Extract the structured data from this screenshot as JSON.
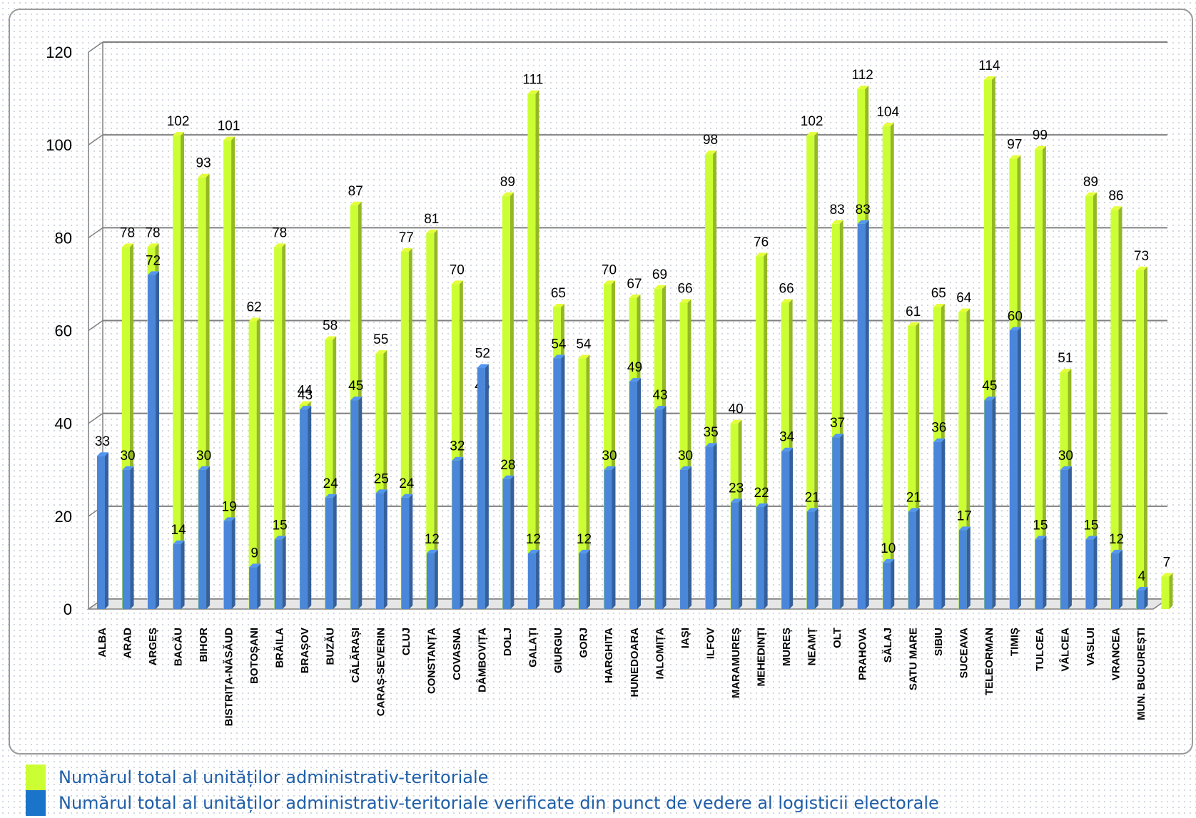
{
  "colors": {
    "series_total": "#ccff33",
    "series_verified": "#4a86d9",
    "grid": "#808080",
    "text": "#000000",
    "legend_text": "#1f5fa8"
  },
  "chart_data": {
    "type": "bar",
    "style": "3d-clustered-column",
    "title": "",
    "xlabel": "",
    "ylabel": "",
    "ylim": [
      0,
      120
    ],
    "yticks": [
      0,
      20,
      40,
      60,
      80,
      100,
      120
    ],
    "grid": true,
    "legend_position": "bottom-left",
    "categories": [
      "ALBA",
      "ARAD",
      "ARGEȘ",
      "BACĂU",
      "BIHOR",
      "BISTRIȚA-NĂSĂUD",
      "BOTOȘANI",
      "BRĂILA",
      "BRAȘOV",
      "BUZĂU",
      "CĂLĂRAȘI",
      "CARAȘ-SEVERIN",
      "CLUJ",
      "CONSTANȚA",
      "COVASNA",
      "DÂMBOVIȚA",
      "DOLJ",
      "GALAȚI",
      "GIURGIU",
      "GORJ",
      "HARGHITA",
      "HUNEDOARA",
      "IALOMIȚA",
      "IAȘI",
      "ILFOV",
      "MARAMUREȘ",
      "MEHEDINȚI",
      "MUREȘ",
      "NEAMȚ",
      "OLT",
      "PRAHOVA",
      "SĂLAJ",
      "SATU MARE",
      "SIBIU",
      "SUCEAVA",
      "TELEORMAN",
      "TIMIȘ",
      "TULCEA",
      "VÂLCEA",
      "VASLUI",
      "VRANCEA",
      "MUN. BUCUREȘTI"
    ],
    "series": [
      {
        "name": "Numărul total al unităților administrativ-teritoriale verificate din punct de vedere al logisticii electorale",
        "color": "#4a86d9",
        "values": [
          33,
          30,
          72,
          14,
          30,
          19,
          9,
          15,
          43,
          24,
          45,
          25,
          24,
          12,
          32,
          52,
          28,
          12,
          54,
          12,
          30,
          49,
          43,
          30,
          35,
          23,
          22,
          34,
          21,
          37,
          83,
          10,
          21,
          36,
          17,
          45,
          60,
          15,
          30,
          15,
          12,
          4
        ]
      },
      {
        "name": "Numărul total al unităților administrativ-teritoriale",
        "color": "#ccff33",
        "values": [
          78,
          78,
          102,
          93,
          101,
          62,
          78,
          44,
          58,
          87,
          55,
          77,
          81,
          70,
          45,
          89,
          111,
          65,
          54,
          70,
          67,
          69,
          66,
          98,
          40,
          76,
          66,
          102,
          83,
          112,
          104,
          61,
          65,
          64,
          114,
          97,
          99,
          51,
          89,
          86,
          73,
          7
        ]
      }
    ]
  },
  "legend": {
    "total_label": "Numărul total al unităților administrativ-teritoriale",
    "verified_label": "Numărul total al unităților administrativ-teritoriale verificate din punct de vedere al logisticii electorale"
  }
}
